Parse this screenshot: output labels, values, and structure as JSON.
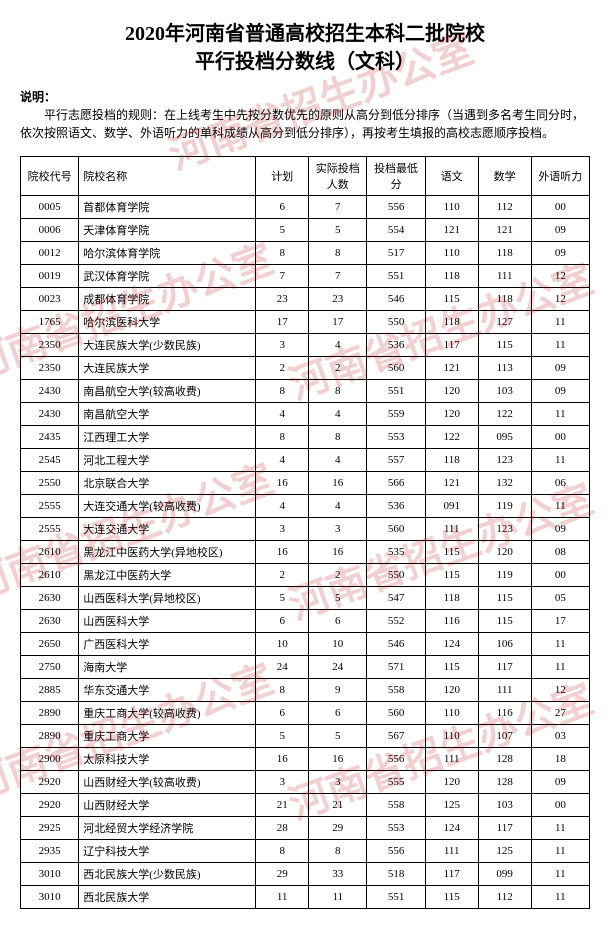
{
  "title_line1": "2020年河南省普通高校招生本科二批院校",
  "title_line2": "平行投档分数线（文科）",
  "note_label": "说明：",
  "note_body": "平行志愿投档的规则：在上线考生中先按分数优先的原则从高分到低分排序（当遇到多名考生同分时，依次按照语文、数学、外语听力的单科成绩从高分到低分排序），再按考生填报的高校志愿顺序投档。",
  "columns": [
    "院校代号",
    "院校名称",
    "计划",
    "实际投档人数",
    "投档最低分",
    "语文",
    "数学",
    "外语听力"
  ],
  "rows": [
    [
      "0005",
      "首都体育学院",
      "6",
      "7",
      "556",
      "110",
      "112",
      "00"
    ],
    [
      "0006",
      "天津体育学院",
      "5",
      "5",
      "554",
      "121",
      "121",
      "09"
    ],
    [
      "0012",
      "哈尔滨体育学院",
      "8",
      "8",
      "517",
      "110",
      "118",
      "09"
    ],
    [
      "0019",
      "武汉体育学院",
      "7",
      "7",
      "551",
      "118",
      "111",
      "12"
    ],
    [
      "0023",
      "成都体育学院",
      "23",
      "23",
      "546",
      "115",
      "118",
      "12"
    ],
    [
      "1765",
      "哈尔滨医科大学",
      "17",
      "17",
      "550",
      "118",
      "127",
      "11"
    ],
    [
      "2350",
      "大连民族大学(少数民族)",
      "3",
      "4",
      "536",
      "117",
      "115",
      "11"
    ],
    [
      "2350",
      "大连民族大学",
      "2",
      "2",
      "560",
      "121",
      "113",
      "09"
    ],
    [
      "2430",
      "南昌航空大学(较高收费)",
      "8",
      "8",
      "551",
      "120",
      "103",
      "09"
    ],
    [
      "2430",
      "南昌航空大学",
      "4",
      "4",
      "559",
      "120",
      "122",
      "11"
    ],
    [
      "2435",
      "江西理工大学",
      "8",
      "8",
      "553",
      "122",
      "095",
      "00"
    ],
    [
      "2545",
      "河北工程大学",
      "4",
      "4",
      "557",
      "118",
      "123",
      "11"
    ],
    [
      "2550",
      "北京联合大学",
      "16",
      "16",
      "566",
      "121",
      "132",
      "06"
    ],
    [
      "2555",
      "大连交通大学(较高收费)",
      "4",
      "4",
      "536",
      "091",
      "119",
      "11"
    ],
    [
      "2555",
      "大连交通大学",
      "3",
      "3",
      "560",
      "111",
      "123",
      "09"
    ],
    [
      "2610",
      "黑龙江中医药大学(异地校区)",
      "16",
      "16",
      "535",
      "115",
      "120",
      "08"
    ],
    [
      "2610",
      "黑龙江中医药大学",
      "2",
      "2",
      "550",
      "115",
      "119",
      "00"
    ],
    [
      "2630",
      "山西医科大学(异地校区)",
      "5",
      "5",
      "547",
      "118",
      "115",
      "05"
    ],
    [
      "2630",
      "山西医科大学",
      "6",
      "6",
      "552",
      "116",
      "115",
      "17"
    ],
    [
      "2650",
      "广西医科大学",
      "10",
      "10",
      "546",
      "124",
      "106",
      "11"
    ],
    [
      "2750",
      "海南大学",
      "24",
      "24",
      "571",
      "115",
      "117",
      "11"
    ],
    [
      "2885",
      "华东交通大学",
      "8",
      "9",
      "558",
      "120",
      "111",
      "12"
    ],
    [
      "2890",
      "重庆工商大学(较高收费)",
      "6",
      "6",
      "560",
      "110",
      "116",
      "27"
    ],
    [
      "2890",
      "重庆工商大学",
      "5",
      "5",
      "567",
      "110",
      "107",
      "03"
    ],
    [
      "2900",
      "太原科技大学",
      "16",
      "16",
      "556",
      "111",
      "128",
      "18"
    ],
    [
      "2920",
      "山西财经大学(较高收费)",
      "3",
      "3",
      "555",
      "120",
      "128",
      "09"
    ],
    [
      "2920",
      "山西财经大学",
      "21",
      "21",
      "558",
      "125",
      "103",
      "00"
    ],
    [
      "2925",
      "河北经贸大学经济学院",
      "28",
      "29",
      "553",
      "124",
      "117",
      "11"
    ],
    [
      "2935",
      "辽宁科技大学",
      "8",
      "8",
      "556",
      "111",
      "125",
      "11"
    ],
    [
      "3010",
      "西北民族大学(少数民族)",
      "29",
      "33",
      "518",
      "117",
      "099",
      "11"
    ],
    [
      "3010",
      "西北民族大学",
      "11",
      "11",
      "551",
      "115",
      "112",
      "11"
    ]
  ],
  "watermark_text": "河南省招生办公室"
}
